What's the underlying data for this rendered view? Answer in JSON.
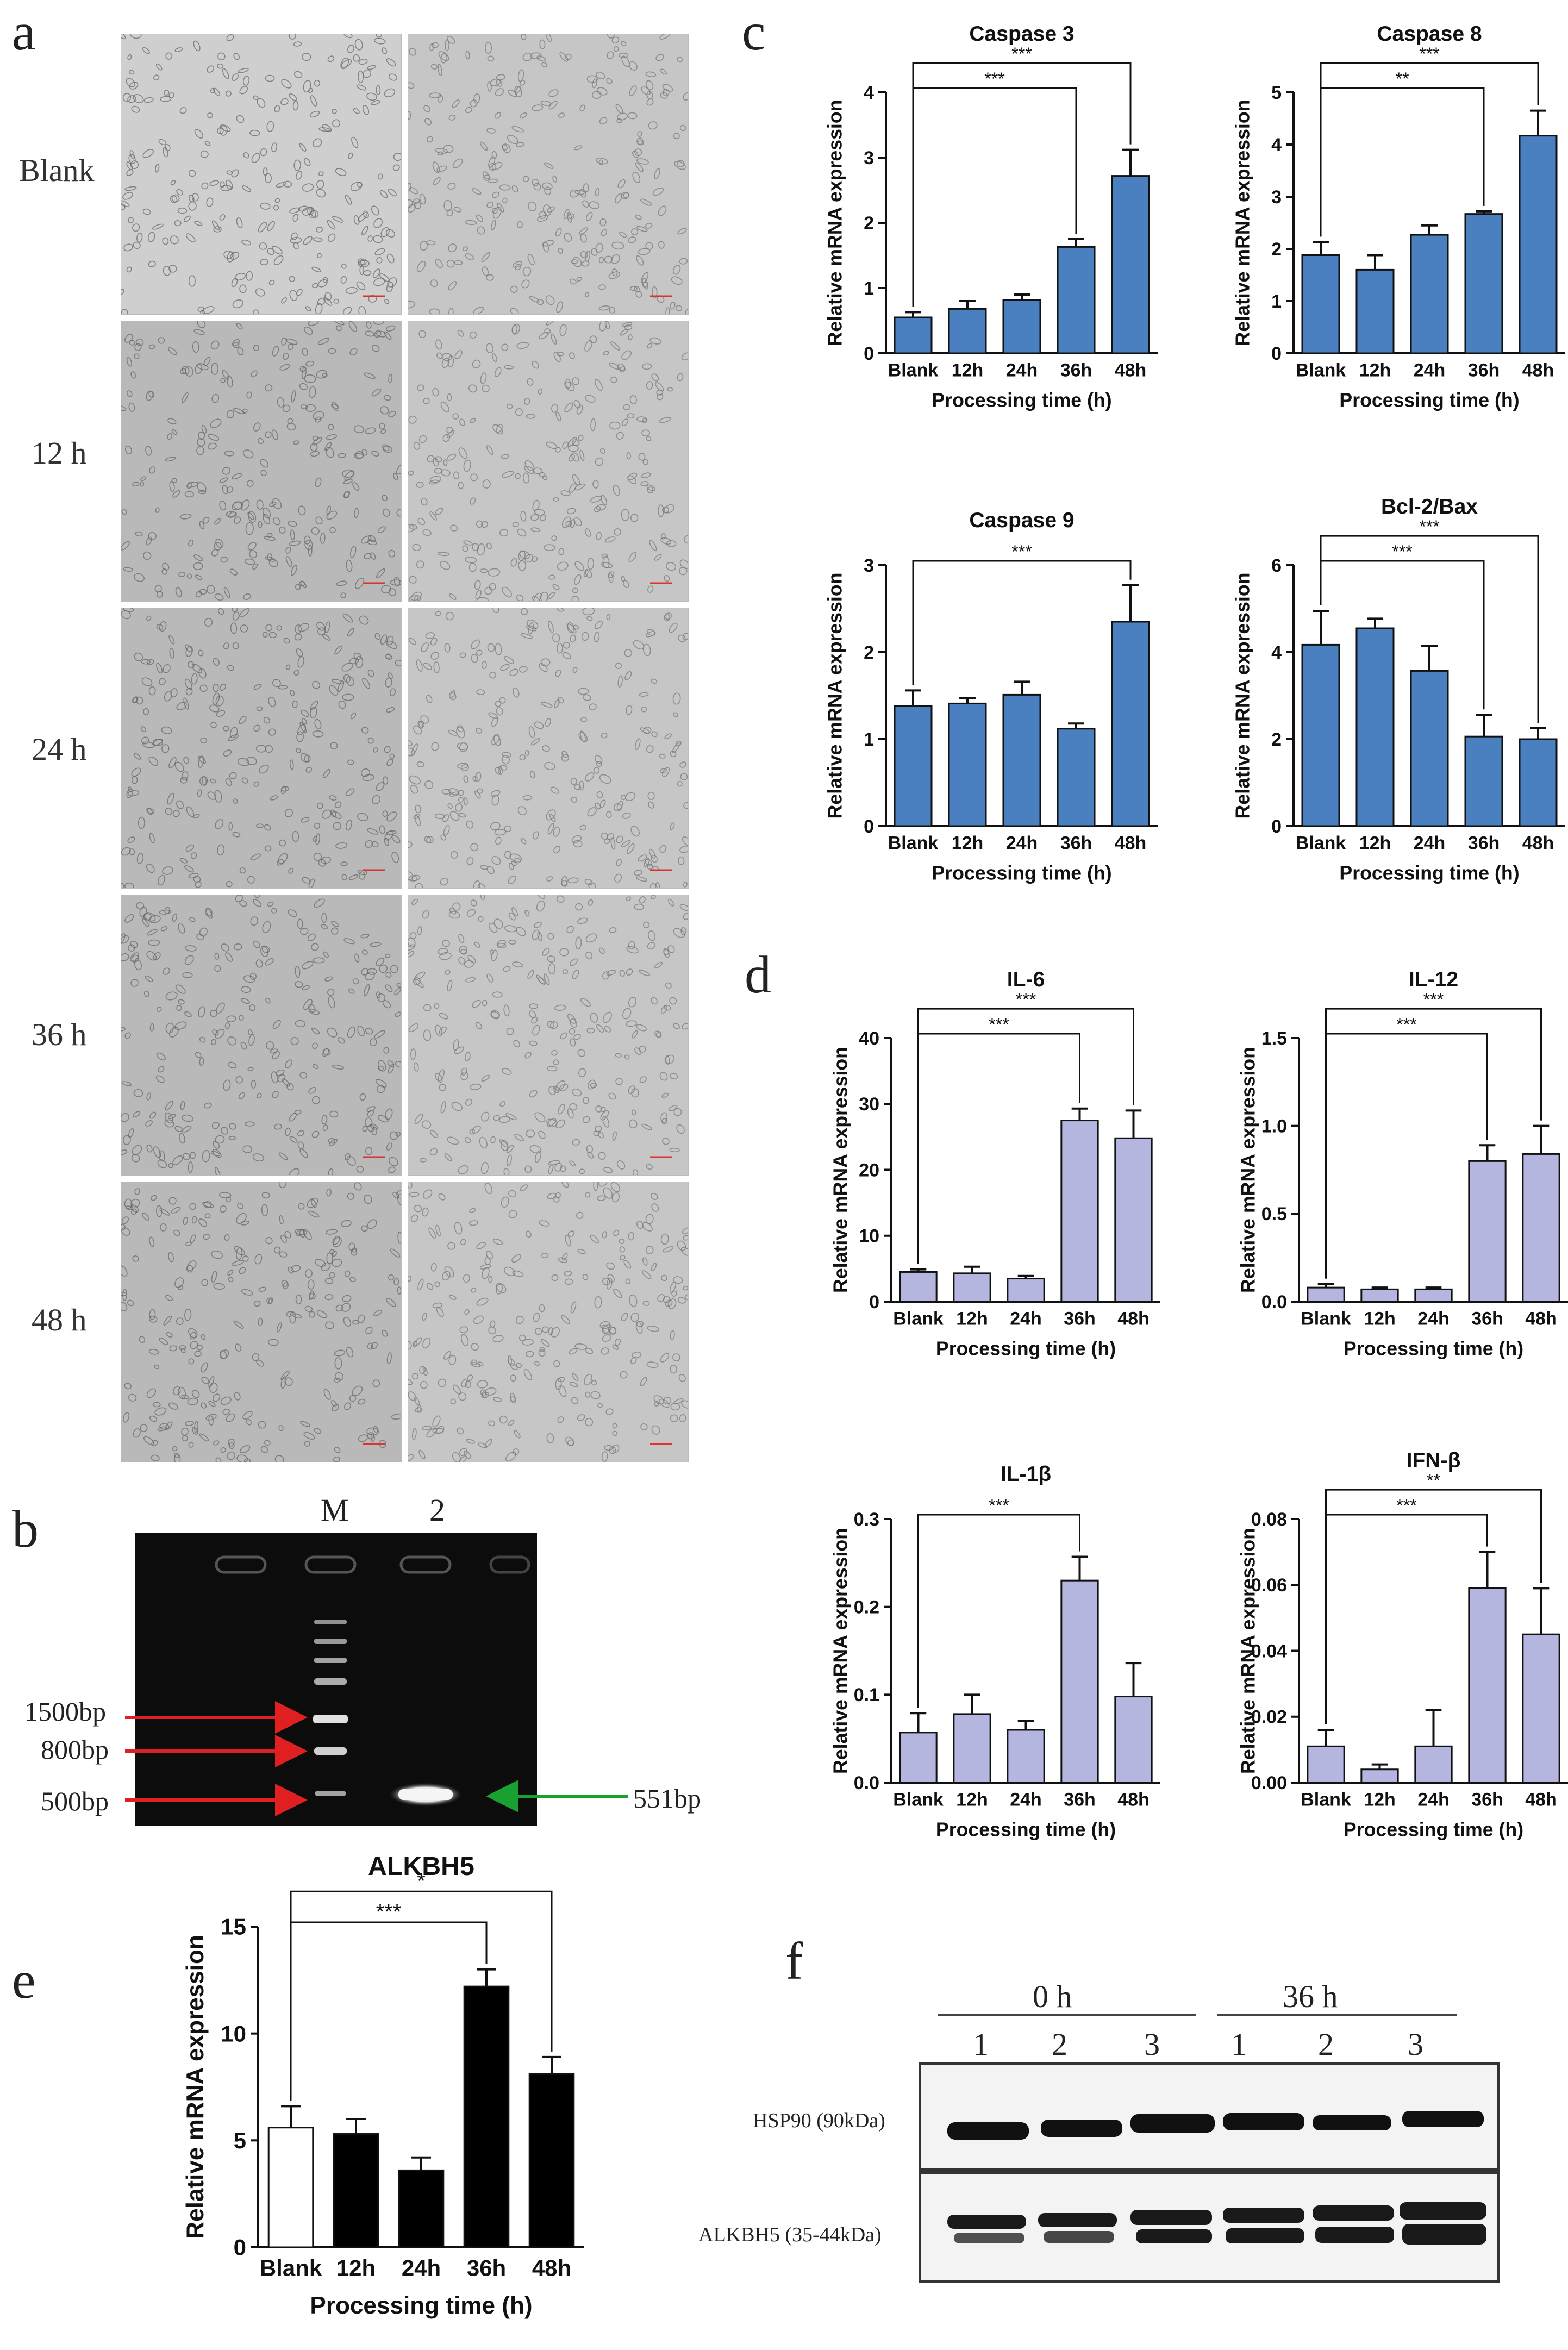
{
  "panel_labels": {
    "a": "a",
    "b": "b",
    "c": "c",
    "d": "d",
    "e": "e",
    "f": "f"
  },
  "panel_a": {
    "rows": [
      "Blank",
      "12 h",
      "24 h",
      "36 h",
      "48 h"
    ]
  },
  "panel_b": {
    "lanes": [
      "M",
      "2"
    ],
    "markers": [
      "1500bp",
      "800bp",
      "500bp"
    ],
    "band_label": "551bp",
    "colors": {
      "marker_arrow": "#e02020",
      "band_arrow": "#18a030"
    }
  },
  "panel_f": {
    "group_labels": [
      "0 h",
      "36 h"
    ],
    "lane_numbers": [
      "1",
      "2",
      "3",
      "1",
      "2",
      "3"
    ],
    "rows": [
      "HSP90 (90kDa)",
      "ALKBH5 (35-44kDa)"
    ]
  },
  "colors": {
    "blue_bar": "#4a80bf",
    "lavender_bar": "#b4b6e0",
    "black_bar": "#000000",
    "white_bar": "#ffffff"
  },
  "chart_data": [
    {
      "id": "caspase3",
      "type": "bar",
      "title": "Caspase 3",
      "categories": [
        "Blank",
        "12h",
        "24h",
        "36h",
        "48h"
      ],
      "values": [
        0.55,
        0.68,
        0.82,
        1.63,
        2.72
      ],
      "errors": [
        0.08,
        0.12,
        0.08,
        0.12,
        0.4
      ],
      "ylim": [
        0,
        4
      ],
      "yticks": [
        "0",
        "1",
        "2",
        "3",
        "4"
      ],
      "ylabel": "Relative mRNA expression",
      "xlabel": "Processing time (h)",
      "bar_color": "#4a80bf",
      "significance": [
        {
          "from": 0,
          "to": 4,
          "label": "***"
        },
        {
          "from": 0,
          "to": 3,
          "label": "***"
        }
      ]
    },
    {
      "id": "caspase8",
      "type": "bar",
      "title": "Caspase 8",
      "categories": [
        "Blank",
        "12h",
        "24h",
        "36h",
        "48h"
      ],
      "values": [
        1.88,
        1.6,
        2.27,
        2.67,
        4.17
      ],
      "errors": [
        0.25,
        0.28,
        0.18,
        0.05,
        0.48
      ],
      "ylim": [
        0,
        5
      ],
      "yticks": [
        "0",
        "1",
        "2",
        "3",
        "4",
        "5"
      ],
      "ylabel": "Relative mRNA expression",
      "xlabel": "Processing time (h)",
      "bar_color": "#4a80bf",
      "significance": [
        {
          "from": 0,
          "to": 4,
          "label": "***"
        },
        {
          "from": 0,
          "to": 3,
          "label": "**"
        }
      ]
    },
    {
      "id": "caspase9",
      "type": "bar",
      "title": "Caspase 9",
      "categories": [
        "Blank",
        "12h",
        "24h",
        "36h",
        "48h"
      ],
      "values": [
        1.38,
        1.41,
        1.51,
        1.12,
        2.35
      ],
      "errors": [
        0.18,
        0.06,
        0.15,
        0.06,
        0.42
      ],
      "ylim": [
        0,
        3
      ],
      "yticks": [
        "0",
        "1",
        "2",
        "3"
      ],
      "ylabel": "Relative mRNA expression",
      "xlabel": "Processing time (h)",
      "bar_color": "#4a80bf",
      "significance": [
        {
          "from": 0,
          "to": 4,
          "label": "***"
        }
      ]
    },
    {
      "id": "bcl2bax",
      "type": "bar",
      "title": "Bcl-2/Bax",
      "categories": [
        "Blank",
        "12h",
        "24h",
        "36h",
        "48h"
      ],
      "values": [
        4.17,
        4.55,
        3.57,
        2.06,
        2.0
      ],
      "errors": [
        0.78,
        0.22,
        0.57,
        0.5,
        0.25
      ],
      "ylim": [
        0,
        6
      ],
      "yticks": [
        "0",
        "2",
        "4",
        "6"
      ],
      "ylabel": "Relative mRNA expression",
      "xlabel": "Processing time (h)",
      "bar_color": "#4a80bf",
      "significance": [
        {
          "from": 0,
          "to": 4,
          "label": "***"
        },
        {
          "from": 0,
          "to": 3,
          "label": "***"
        }
      ]
    },
    {
      "id": "il6",
      "type": "bar",
      "title": "IL-6",
      "categories": [
        "Blank",
        "12h",
        "24h",
        "36h",
        "48h"
      ],
      "values": [
        4.5,
        4.3,
        3.5,
        27.5,
        24.8
      ],
      "errors": [
        0.4,
        1.0,
        0.4,
        1.8,
        4.2
      ],
      "ylim": [
        0,
        40
      ],
      "yticks": [
        "0",
        "10",
        "20",
        "30",
        "40"
      ],
      "ylabel": "Relative mRNA expression",
      "xlabel": "Processing time (h)",
      "bar_color": "#b4b6e0",
      "significance": [
        {
          "from": 0,
          "to": 4,
          "label": "***"
        },
        {
          "from": 0,
          "to": 3,
          "label": "***"
        }
      ]
    },
    {
      "id": "il12",
      "type": "bar",
      "title": "IL-12",
      "categories": [
        "Blank",
        "12h",
        "24h",
        "36h",
        "48h"
      ],
      "values": [
        0.08,
        0.07,
        0.07,
        0.8,
        0.84
      ],
      "errors": [
        0.02,
        0.01,
        0.01,
        0.09,
        0.16
      ],
      "ylim": [
        0,
        1.5
      ],
      "yticks": [
        "0.0",
        "0.5",
        "1.0",
        "1.5"
      ],
      "ylabel": "Relative mRNA expression",
      "xlabel": "Processing time (h)",
      "bar_color": "#b4b6e0",
      "significance": [
        {
          "from": 0,
          "to": 4,
          "label": "***"
        },
        {
          "from": 0,
          "to": 3,
          "label": "***"
        }
      ]
    },
    {
      "id": "il1b",
      "type": "bar",
      "title": "IL-1β",
      "categories": [
        "Blank",
        "12h",
        "24h",
        "36h",
        "48h"
      ],
      "values": [
        0.057,
        0.078,
        0.06,
        0.23,
        0.098
      ],
      "errors": [
        0.022,
        0.022,
        0.01,
        0.027,
        0.038
      ],
      "ylim": [
        0,
        0.3
      ],
      "yticks": [
        "0.0",
        "0.1",
        "0.2",
        "0.3"
      ],
      "ylabel": "Relative mRNA expression",
      "xlabel": "Processing time (h)",
      "bar_color": "#b4b6e0",
      "significance": [
        {
          "from": 0,
          "to": 3,
          "label": "***"
        }
      ]
    },
    {
      "id": "ifnb",
      "type": "bar",
      "title": "IFN-β",
      "categories": [
        "Blank",
        "12h",
        "24h",
        "36h",
        "48h"
      ],
      "values": [
        0.011,
        0.004,
        0.011,
        0.059,
        0.045
      ],
      "errors": [
        0.005,
        0.0015,
        0.011,
        0.011,
        0.014
      ],
      "ylim": [
        0,
        0.08
      ],
      "yticks": [
        "0.00",
        "0.02",
        "0.04",
        "0.06",
        "0.08"
      ],
      "ylabel": "Relative mRNA expression",
      "xlabel": "Processing time (h)",
      "bar_color": "#b4b6e0",
      "significance": [
        {
          "from": 0,
          "to": 4,
          "label": "**"
        },
        {
          "from": 0,
          "to": 3,
          "label": "***"
        }
      ]
    },
    {
      "id": "alkbh5",
      "type": "bar",
      "title": "ALKBH5",
      "categories": [
        "Blank",
        "12h",
        "24h",
        "36h",
        "48h"
      ],
      "values": [
        5.6,
        5.3,
        3.6,
        12.2,
        8.1
      ],
      "errors": [
        1.0,
        0.7,
        0.6,
        0.8,
        0.8
      ],
      "ylim": [
        0,
        15
      ],
      "yticks": [
        "0",
        "5",
        "10",
        "15"
      ],
      "ylabel": "Relative mRNA expression",
      "xlabel": "Processing time (h)",
      "bar_colors": [
        "#ffffff",
        "#000000",
        "#000000",
        "#000000",
        "#000000"
      ],
      "significance": [
        {
          "from": 0,
          "to": 4,
          "label": "*"
        },
        {
          "from": 0,
          "to": 3,
          "label": "***"
        }
      ]
    }
  ]
}
